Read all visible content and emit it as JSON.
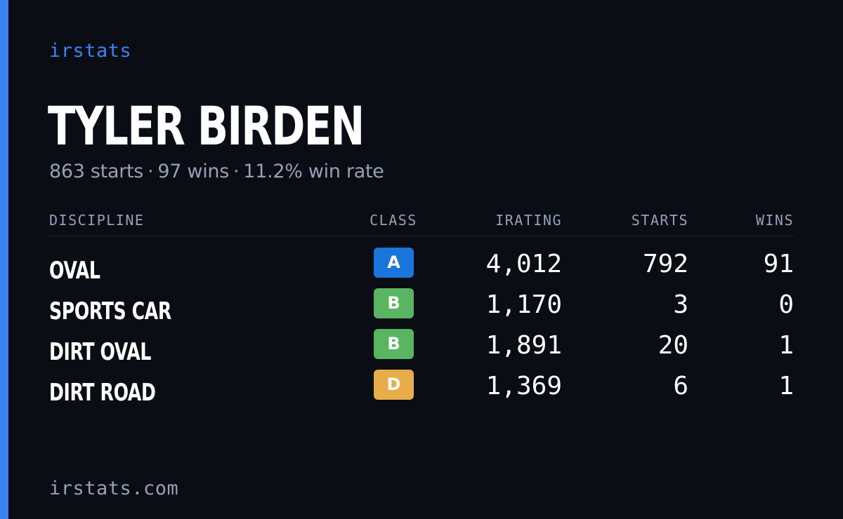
{
  "colors": {
    "background": "#0a0d14",
    "accent": "#3b82f6",
    "text_primary": "#ffffff",
    "text_muted": "#97a0b3"
  },
  "brand": {
    "label": "irstats"
  },
  "driver": {
    "name": "TYLER BIRDEN",
    "starts_text": "863 starts",
    "wins_text": "97 wins",
    "win_rate_text": "11.2% win rate",
    "separator": "·"
  },
  "table": {
    "headers": {
      "discipline": "DISCIPLINE",
      "class": "CLASS",
      "irating": "IRATING",
      "starts": "STARTS",
      "wins": "WINS"
    },
    "rows": [
      {
        "discipline": "OVAL",
        "class": "A",
        "class_color": "#1a76db",
        "irating": "4,012",
        "starts": "792",
        "wins": "91"
      },
      {
        "discipline": "SPORTS CAR",
        "class": "B",
        "class_color": "#59b562",
        "irating": "1,170",
        "starts": "3",
        "wins": "0"
      },
      {
        "discipline": "DIRT OVAL",
        "class": "B",
        "class_color": "#59b562",
        "irating": "1,891",
        "starts": "20",
        "wins": "1"
      },
      {
        "discipline": "DIRT ROAD",
        "class": "D",
        "class_color": "#e8ac4a",
        "irating": "1,369",
        "starts": "6",
        "wins": "1"
      }
    ]
  },
  "footer": {
    "url": "irstats.com"
  }
}
